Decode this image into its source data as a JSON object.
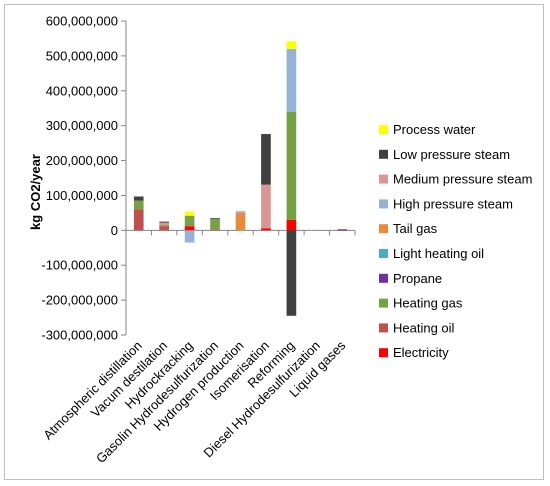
{
  "chart_data": {
    "type": "bar",
    "stacked": true,
    "title": "",
    "xlabel": "",
    "ylabel": "kg CO2/year",
    "ylim": [
      -300000000,
      600000000
    ],
    "ytick_step": 100000000,
    "grid": false,
    "legend_position": "right",
    "categories": [
      "Atmospheric distillation",
      "Vacum destilation",
      "Hydrockracking",
      "Gasolin Hydrodesulfurization",
      "Hydrogen production",
      "Isomerisation",
      "Reforming",
      "Diesel Hydrodesulfurization",
      "Liquid gases"
    ],
    "ytick_labels": [
      "600,000,000",
      "500,000,000",
      "400,000,000",
      "300,000,000",
      "200,000,000",
      "100,000,000",
      "0",
      "-100,000,000",
      "-200,000,000",
      "-300,000,000"
    ],
    "series": [
      {
        "name": "Electricity",
        "color": "#ff0000",
        "values": [
          0,
          0,
          12000000,
          0,
          0,
          6000000,
          30000000,
          0,
          0
        ]
      },
      {
        "name": "Heating oil",
        "color": "#c0504d",
        "values": [
          60000000,
          12000000,
          0,
          3000000,
          0,
          0,
          0,
          0,
          1000000
        ]
      },
      {
        "name": "Heating gas",
        "color": "#77a146",
        "values": [
          25000000,
          3000000,
          30000000,
          30000000,
          0,
          0,
          310000000,
          1000000,
          0
        ]
      },
      {
        "name": "Propane",
        "color": "#7030a0",
        "values": [
          0,
          0,
          0,
          0,
          0,
          0,
          0,
          0,
          2000000
        ]
      },
      {
        "name": "Light heating oil",
        "color": "#4bacc6",
        "values": [
          0,
          0,
          0,
          0,
          0,
          0,
          0,
          0,
          0
        ]
      },
      {
        "name": "Tail gas",
        "color": "#e98b3a",
        "values": [
          0,
          0,
          0,
          0,
          50000000,
          0,
          0,
          0,
          0
        ]
      },
      {
        "name": "High pressure steam",
        "color": "#95b3d7",
        "values": [
          0,
          0,
          -35000000,
          0,
          5000000,
          0,
          180000000,
          0,
          0
        ]
      },
      {
        "name": "Medium pressure steam",
        "color": "#da9694",
        "values": [
          0,
          7000000,
          0,
          0,
          0,
          125000000,
          0,
          0,
          0
        ]
      },
      {
        "name": "Low pressure steam",
        "color": "#404040",
        "values": [
          12000000,
          3000000,
          0,
          2000000,
          0,
          145000000,
          -245000000,
          0,
          0
        ]
      },
      {
        "name": "Process water",
        "color": "#ffff00",
        "values": [
          0,
          0,
          12000000,
          0,
          0,
          0,
          22000000,
          0,
          0
        ]
      }
    ]
  }
}
